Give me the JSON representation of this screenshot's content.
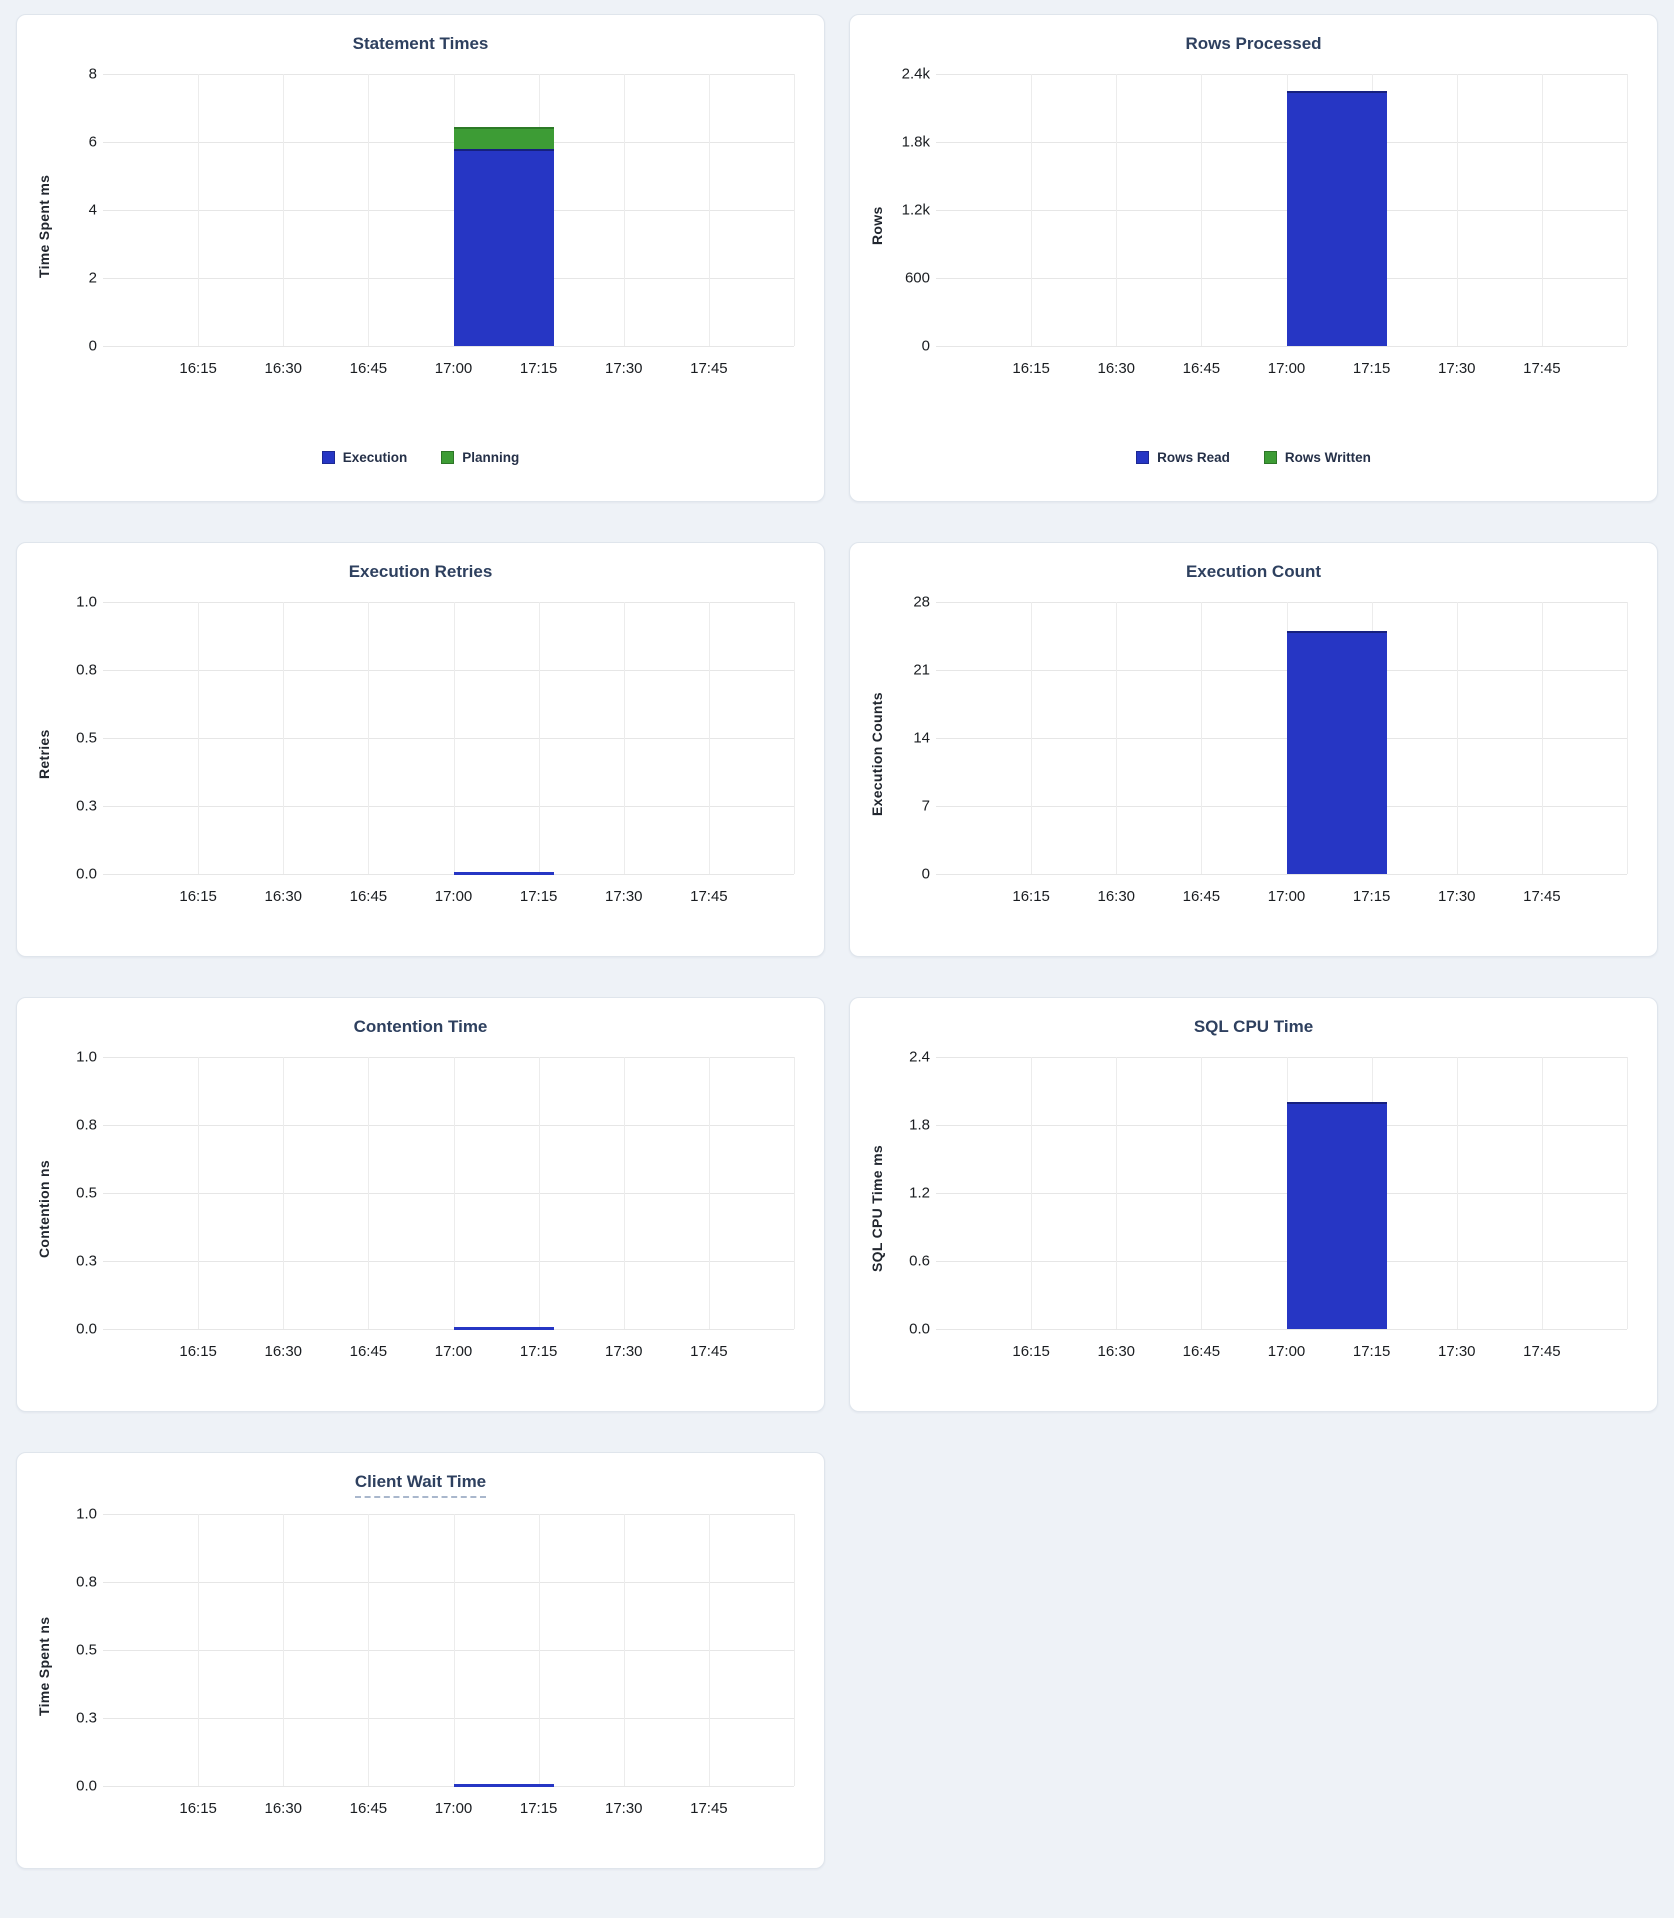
{
  "page": {
    "background": "#eef2f7"
  },
  "colors": {
    "blue": "#2636c4",
    "blue_stroke": "#16207e",
    "green": "#3d9c35",
    "green_stroke": "#2c7a26",
    "title_text": "#2e405f",
    "tick_label": "#1a1d21",
    "legend_label": "#253048",
    "grid_horizontal": "#e6e6e6",
    "grid_vertical": "#ececec",
    "card_border": "#dfe5ec",
    "card_background": "#ffffff"
  },
  "x_axis": {
    "intervals": 8,
    "tick_labels": [
      "16:15",
      "16:30",
      "16:45",
      "17:00",
      "17:15",
      "17:30",
      "17:45"
    ],
    "bar_start_interval": 4,
    "bar_span_intervals": 1.18
  },
  "chart_data": [
    {
      "type": "bar",
      "title": "Statement Times",
      "ylabel": "Time Spent ms",
      "ymax": 8,
      "ylim": [
        0,
        8
      ],
      "x_bucket": "17:00",
      "yticks": [
        {
          "value": 0,
          "label": "0"
        },
        {
          "value": 2,
          "label": "2"
        },
        {
          "value": 4,
          "label": "4"
        },
        {
          "value": 6,
          "label": "6"
        },
        {
          "value": 8,
          "label": "8"
        }
      ],
      "series": [
        {
          "name": "Execution",
          "value": 5.8,
          "color": "blue",
          "stroke": "blue_stroke"
        },
        {
          "name": "Planning",
          "value": 0.65,
          "color": "green",
          "stroke": "green_stroke"
        }
      ],
      "legend": [
        {
          "label": "Execution",
          "color": "blue"
        },
        {
          "label": "Planning",
          "color": "green"
        }
      ],
      "title_underlined": false
    },
    {
      "type": "bar",
      "title": "Rows Processed",
      "ylabel": "Rows",
      "ymax": 2400,
      "ylim": [
        0,
        2400
      ],
      "x_bucket": "17:00",
      "yticks": [
        {
          "value": 0,
          "label": "0"
        },
        {
          "value": 600,
          "label": "600"
        },
        {
          "value": 1200,
          "label": "1.2k"
        },
        {
          "value": 1800,
          "label": "1.8k"
        },
        {
          "value": 2400,
          "label": "2.4k"
        }
      ],
      "series": [
        {
          "name": "Rows Read",
          "value": 2250,
          "color": "blue",
          "stroke": "blue_stroke"
        },
        {
          "name": "Rows Written",
          "value": 0,
          "color": "green",
          "stroke": "green_stroke"
        }
      ],
      "legend": [
        {
          "label": "Rows Read",
          "color": "blue"
        },
        {
          "label": "Rows Written",
          "color": "green"
        }
      ],
      "title_underlined": false
    },
    {
      "type": "flatline",
      "title": "Execution Retries",
      "ylabel": "Retries",
      "ymax": 1,
      "ylim": [
        0,
        1
      ],
      "x_bucket": "17:00",
      "yticks": [
        {
          "value": 0,
          "label": "0.0"
        },
        {
          "value": 0.25,
          "label": "0.3"
        },
        {
          "value": 0.5,
          "label": "0.5"
        },
        {
          "value": 0.75,
          "label": "0.8"
        },
        {
          "value": 1,
          "label": "1.0"
        }
      ],
      "series": [
        {
          "name": "Retries",
          "value": 0,
          "color": "blue"
        }
      ],
      "legend": [],
      "title_underlined": false
    },
    {
      "type": "bar",
      "title": "Execution Count",
      "ylabel": "Execution Counts",
      "ymax": 28,
      "ylim": [
        0,
        28
      ],
      "x_bucket": "17:00",
      "yticks": [
        {
          "value": 0,
          "label": "0"
        },
        {
          "value": 7,
          "label": "7"
        },
        {
          "value": 14,
          "label": "14"
        },
        {
          "value": 21,
          "label": "21"
        },
        {
          "value": 28,
          "label": "28"
        }
      ],
      "series": [
        {
          "name": "Execution Count",
          "value": 25,
          "color": "blue",
          "stroke": "blue_stroke"
        }
      ],
      "legend": [],
      "title_underlined": false
    },
    {
      "type": "flatline",
      "title": "Contention Time",
      "ylabel": "Contention ns",
      "ymax": 1,
      "ylim": [
        0,
        1
      ],
      "x_bucket": "17:00",
      "yticks": [
        {
          "value": 0,
          "label": "0.0"
        },
        {
          "value": 0.25,
          "label": "0.3"
        },
        {
          "value": 0.5,
          "label": "0.5"
        },
        {
          "value": 0.75,
          "label": "0.8"
        },
        {
          "value": 1,
          "label": "1.0"
        }
      ],
      "series": [
        {
          "name": "Contention",
          "value": 0,
          "color": "blue"
        }
      ],
      "legend": [],
      "title_underlined": false
    },
    {
      "type": "bar",
      "title": "SQL CPU Time",
      "ylabel": "SQL CPU Time ms",
      "ymax": 2.4,
      "ylim": [
        0,
        2.4
      ],
      "x_bucket": "17:00",
      "yticks": [
        {
          "value": 0,
          "label": "0.0"
        },
        {
          "value": 0.6,
          "label": "0.6"
        },
        {
          "value": 1.2,
          "label": "1.2"
        },
        {
          "value": 1.8,
          "label": "1.8"
        },
        {
          "value": 2.4,
          "label": "2.4"
        }
      ],
      "series": [
        {
          "name": "SQL CPU Time",
          "value": 2.0,
          "color": "blue",
          "stroke": "blue_stroke"
        }
      ],
      "legend": [],
      "title_underlined": false
    },
    {
      "type": "flatline",
      "title": "Client Wait Time",
      "ylabel": "Time Spent ns",
      "ymax": 1,
      "ylim": [
        0,
        1
      ],
      "x_bucket": "17:00",
      "yticks": [
        {
          "value": 0,
          "label": "0.0"
        },
        {
          "value": 0.25,
          "label": "0.3"
        },
        {
          "value": 0.5,
          "label": "0.5"
        },
        {
          "value": 0.75,
          "label": "0.8"
        },
        {
          "value": 1,
          "label": "1.0"
        }
      ],
      "series": [
        {
          "name": "Client Wait Time",
          "value": 0,
          "color": "blue"
        }
      ],
      "legend": [],
      "title_underlined": true
    }
  ]
}
